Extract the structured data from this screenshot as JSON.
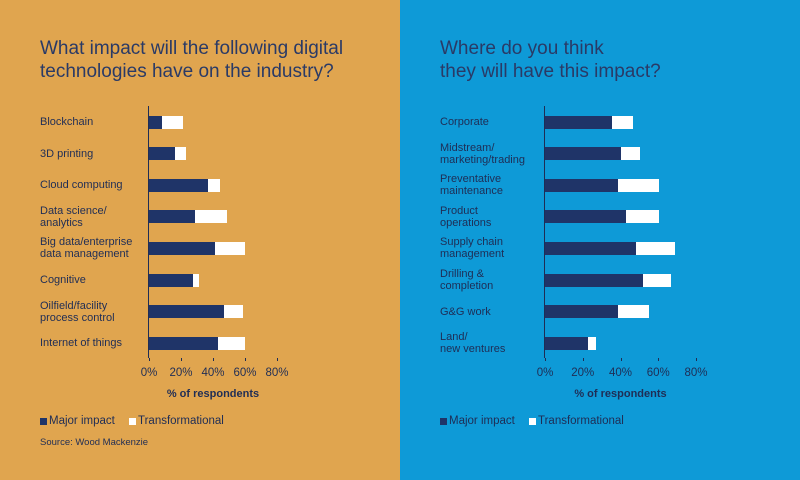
{
  "chart_data": [
    {
      "type": "bar",
      "orientation": "horizontal",
      "stacked": true,
      "title": "What impact will the following digital\ntechnologies have on the industry?",
      "categories": [
        "Blockchain",
        "3D printing",
        "Cloud computing",
        "Data science/\nanalytics",
        "Big data/enterprise\ndata management",
        "Cognitive",
        "Oilfield/facility\nprocess control",
        "Internet of things"
      ],
      "series": [
        {
          "name": "Major impact",
          "color": "#1f3468",
          "values": [
            8,
            16,
            37,
            29,
            41,
            27.5,
            47,
            43
          ]
        },
        {
          "name": "Transformational",
          "color": "#ffffff",
          "values": [
            13,
            7,
            7.5,
            20,
            19,
            4,
            12,
            17
          ]
        }
      ],
      "xlim": [
        0,
        80
      ],
      "xticks": [
        {
          "value": 0,
          "label": "0%"
        },
        {
          "value": 20,
          "label": "20%"
        },
        {
          "value": 40,
          "label": "40%"
        },
        {
          "value": 60,
          "label": "60%"
        },
        {
          "value": 80,
          "label": "80%"
        }
      ],
      "xlabel": "% of respondents",
      "background": "#e0a54f",
      "source": "Source: Wood Mackenzie"
    },
    {
      "type": "bar",
      "orientation": "horizontal",
      "stacked": true,
      "title": "Where do you think\nthey will have this impact?",
      "categories": [
        "Corporate",
        "Midstream/\nmarketing/trading",
        "Preventative\nmaintenance",
        "Product\noperations",
        "Supply chain\nmanagement",
        "Drilling &\ncompletion",
        "G&G work",
        "Land/\nnew ventures"
      ],
      "series": [
        {
          "name": "Major impact",
          "color": "#1f3468",
          "values": [
            35.5,
            40,
            38.5,
            43,
            48,
            52,
            38.5,
            23
          ]
        },
        {
          "name": "Transformational",
          "color": "#ffffff",
          "values": [
            11,
            10.5,
            22,
            17.5,
            21,
            15,
            16.5,
            4
          ]
        }
      ],
      "xlim": [
        0,
        80
      ],
      "xticks": [
        {
          "value": 0,
          "label": "0%"
        },
        {
          "value": 20,
          "label": "20%"
        },
        {
          "value": 40,
          "label": "40%"
        },
        {
          "value": 60,
          "label": "60%"
        },
        {
          "value": 80,
          "label": "80%"
        }
      ],
      "xlabel": "% of respondents",
      "background": "#0e9ad7"
    }
  ]
}
